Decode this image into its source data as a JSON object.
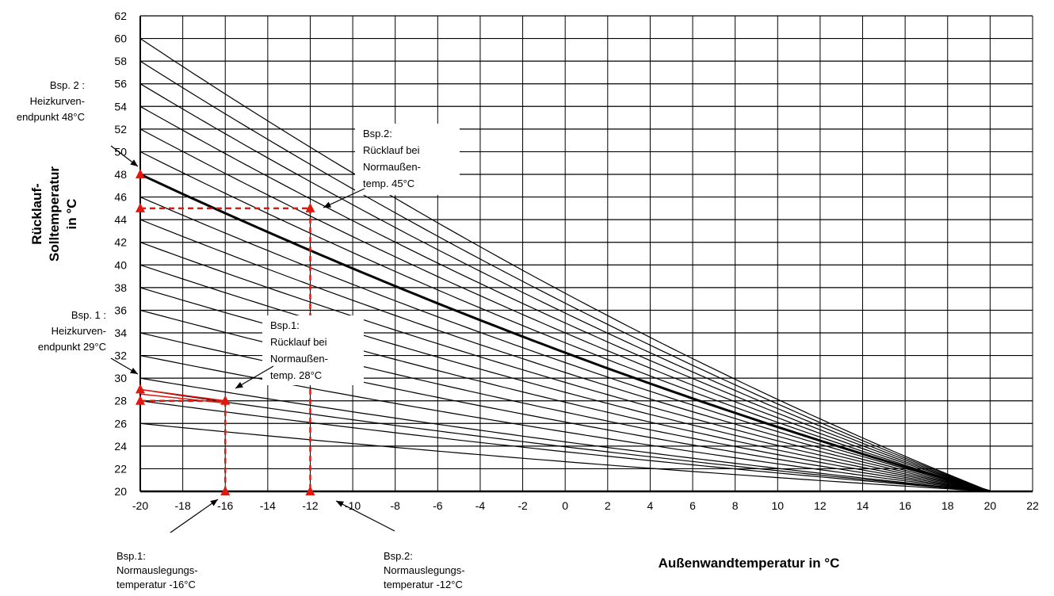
{
  "chart_data": {
    "type": "line",
    "xlabel": "Außenwandtemperatur in °C",
    "ylabel_lines": [
      "Rücklauf-",
      "Solltemperatur",
      "in °C"
    ],
    "xlim": [
      -20,
      22
    ],
    "ylim": [
      20,
      62
    ],
    "x_ticks": [
      -20,
      -18,
      -16,
      -14,
      -12,
      -10,
      -8,
      -6,
      -4,
      -2,
      0,
      2,
      4,
      6,
      8,
      10,
      12,
      14,
      16,
      18,
      20,
      22
    ],
    "y_ticks": [
      20,
      22,
      24,
      26,
      28,
      30,
      32,
      34,
      36,
      38,
      40,
      42,
      44,
      46,
      48,
      50,
      52,
      54,
      56,
      58,
      60,
      62
    ],
    "grid": true,
    "curve_family": {
      "description_values": "heating curves from endpoint at -20°C to 20°C at +20°C",
      "endpoints_at_x_minus20": [
        26,
        28,
        29,
        30,
        32,
        34,
        36,
        38,
        40,
        42,
        44,
        46,
        48,
        50,
        52,
        54,
        56,
        58,
        60
      ],
      "converge_point": [
        20,
        20
      ],
      "highlighted_endpoint": 48
    },
    "markers": [
      {
        "x": -20,
        "y": 48
      },
      {
        "x": -20,
        "y": 45
      },
      {
        "x": -12,
        "y": 45
      },
      {
        "x": -12,
        "y": 20
      },
      {
        "x": -20,
        "y": 29
      },
      {
        "x": -20,
        "y": 28
      },
      {
        "x": -16,
        "y": 28
      },
      {
        "x": -16,
        "y": 20
      }
    ],
    "dashed_lines": [
      [
        [
          -20,
          45
        ],
        [
          -12,
          45
        ]
      ],
      [
        [
          -12,
          45
        ],
        [
          -12,
          20
        ]
      ],
      [
        [
          -20,
          28
        ],
        [
          -16,
          28
        ]
      ],
      [
        [
          -16,
          28
        ],
        [
          -16,
          20
        ]
      ]
    ],
    "annotations": [
      {
        "id": "bsp2-endpoint",
        "lines": [
          "Bsp. 2 :",
          "Heizkurven-",
          "endpunkt 48°C"
        ]
      },
      {
        "id": "bsp2-return",
        "lines": [
          "Bsp.2:",
          "Rücklauf bei",
          "Normaußen-",
          "temp. 45°C"
        ]
      },
      {
        "id": "bsp1-endpoint",
        "lines": [
          "Bsp. 1 :",
          "Heizkurven-",
          "endpunkt 29°C"
        ]
      },
      {
        "id": "bsp1-return",
        "lines": [
          "Bsp.1:",
          "Rücklauf bei",
          "Normaußen-",
          "temp. 28°C"
        ]
      },
      {
        "id": "bsp1-design",
        "lines": [
          "Bsp.1:",
          "Normauslegungs-",
          "temperatur  -16°C"
        ]
      },
      {
        "id": "bsp2-design",
        "lines": [
          "Bsp.2:",
          "Normauslegungs-",
          "temperatur  -12°C"
        ]
      }
    ],
    "colors": {
      "curves": "#000000",
      "marker": "#e0190f",
      "dash": "#e0190f",
      "grid": "#000000"
    }
  }
}
